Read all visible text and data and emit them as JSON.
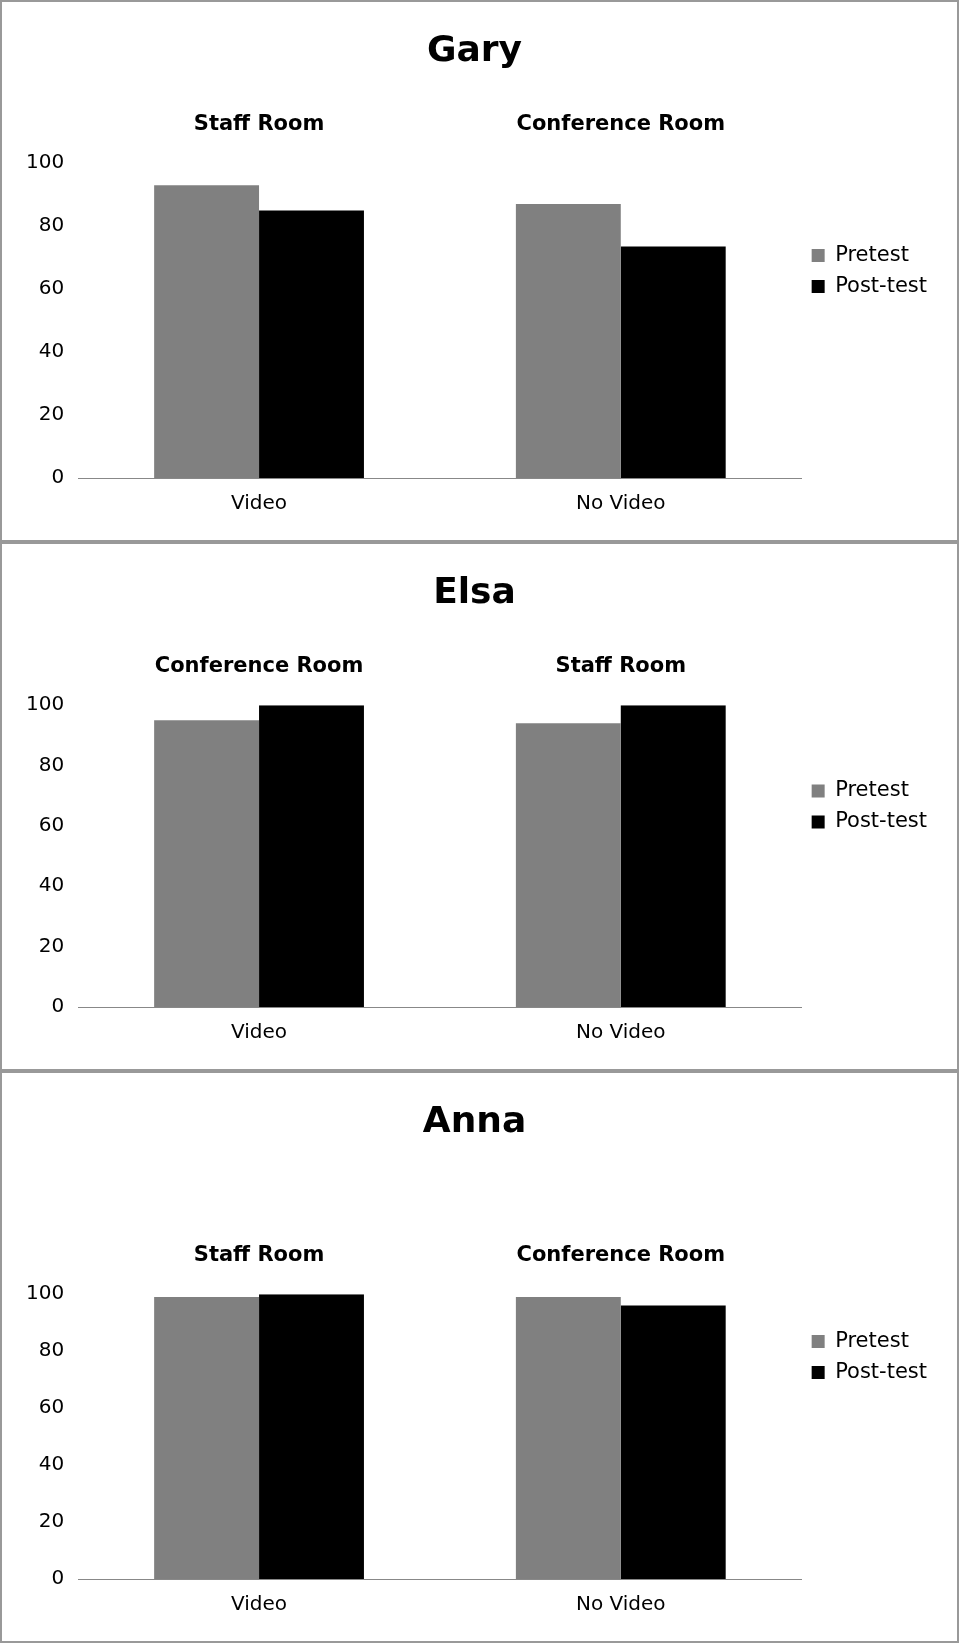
{
  "chart_data": [
    {
      "type": "bar",
      "title": "Gary",
      "categories": [
        "Video",
        "No Video"
      ],
      "series": [
        {
          "name": "Pretest",
          "color": "#808080",
          "values": [
            93,
            87
          ]
        },
        {
          "name": "Post-test",
          "color": "#000000",
          "values": [
            85,
            73.5
          ]
        }
      ],
      "ylim": [
        0,
        100
      ],
      "yticks": [
        0,
        20,
        40,
        60,
        80,
        100
      ],
      "legend": "right",
      "grid": false,
      "annotations": [
        "Staff Room",
        "Conference Room"
      ]
    },
    {
      "type": "bar",
      "title": "Elsa",
      "categories": [
        "Video",
        "No Video"
      ],
      "series": [
        {
          "name": "Pretest",
          "color": "#808080",
          "values": [
            95,
            94
          ]
        },
        {
          "name": "Post-test",
          "color": "#000000",
          "values": [
            100,
            100
          ]
        }
      ],
      "ylim": [
        0,
        100
      ],
      "yticks": [
        0,
        20,
        40,
        60,
        80,
        100
      ],
      "legend": "right",
      "grid": false,
      "annotations": [
        "Conference Room",
        "Staff Room"
      ]
    },
    {
      "type": "bar",
      "title": "Anna",
      "categories": [
        "Video",
        "No Video"
      ],
      "series": [
        {
          "name": "Pretest",
          "color": "#808080",
          "values": [
            99,
            99
          ]
        },
        {
          "name": "Post-test",
          "color": "#000000",
          "values": [
            100,
            96
          ]
        }
      ],
      "ylim": [
        0,
        100
      ],
      "yticks": [
        0,
        20,
        40,
        60,
        80,
        100
      ],
      "legend": "right",
      "grid": false,
      "annotations": [
        "Staff Room",
        "Conference Room"
      ]
    }
  ]
}
